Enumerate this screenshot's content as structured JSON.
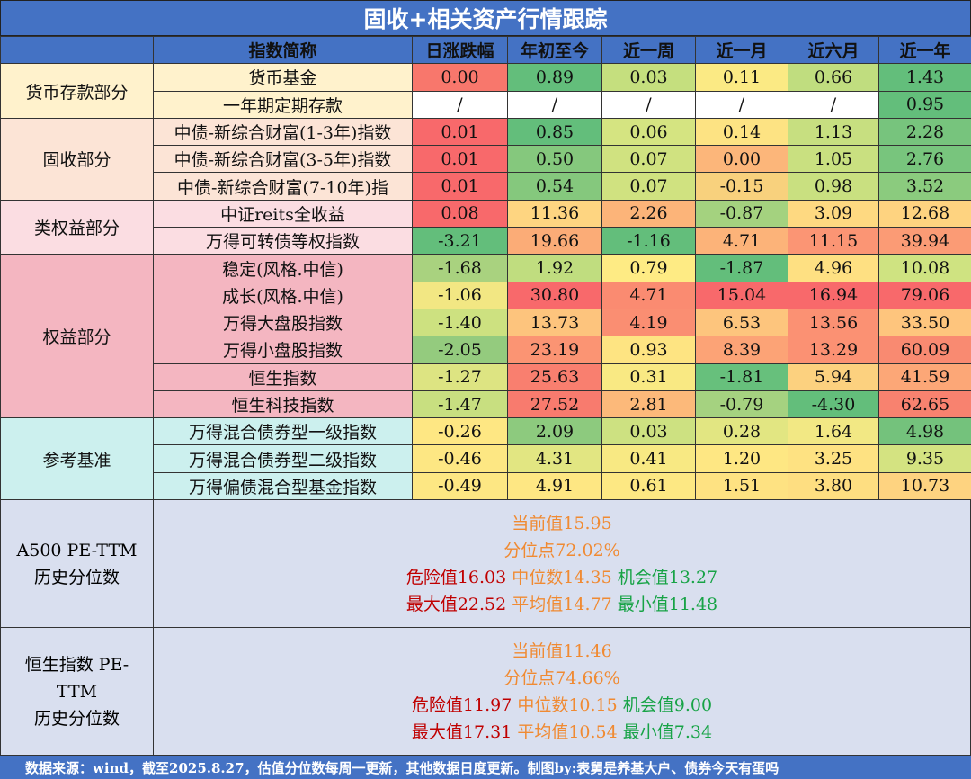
{
  "title": "固收+相关资产行情跟踪",
  "headers": [
    "指数简称",
    "日涨跌幅",
    "年初至今",
    "近一周",
    "近一月",
    "近六月",
    "近一年"
  ],
  "groups": [
    {
      "name": "货币存款部分",
      "bg": "#fff2cc",
      "rows": [
        {
          "name": "货币基金",
          "values": [
            "0.00",
            "0.89",
            "0.03",
            "0.11",
            "0.66",
            "1.43"
          ],
          "colors": [
            "#f8776c",
            "#63be7b",
            "#c5df7e",
            "#fbea84",
            "#c0dd7f",
            "#63be7b"
          ]
        },
        {
          "name": "一年期定期存款",
          "values": [
            "/",
            "/",
            "/",
            "/",
            "/",
            "0.95"
          ],
          "colors": [
            "#ffffff",
            "#ffffff",
            "#ffffff",
            "#ffffff",
            "#ffffff",
            "#63be7b"
          ]
        }
      ]
    },
    {
      "name": "固收部分",
      "bg": "#fce4d6",
      "rows": [
        {
          "name": "中债-新综合财富(1-3年)指数",
          "values": [
            "0.01",
            "0.85",
            "0.06",
            "0.14",
            "1.13",
            "2.28"
          ],
          "colors": [
            "#f8696b",
            "#63be7b",
            "#d5e481",
            "#fde383",
            "#c7df80",
            "#77c47d"
          ]
        },
        {
          "name": "中债-新综合财富(3-5年)指数",
          "values": [
            "0.01",
            "0.50",
            "0.07",
            "0.00",
            "1.05",
            "2.76"
          ],
          "colors": [
            "#f8696b",
            "#85c87d",
            "#d0e280",
            "#fcb67a",
            "#c9e080",
            "#78c57d"
          ]
        },
        {
          "name": "中债-新综合财富(7-10年)指",
          "values": [
            "0.01",
            "0.54",
            "0.07",
            "-0.15",
            "0.98",
            "3.52"
          ],
          "colors": [
            "#f8696b",
            "#85c87d",
            "#d0e280",
            "#f8d17d",
            "#c9e080",
            "#8bcb7e"
          ]
        }
      ]
    },
    {
      "name": "类权益部分",
      "bg": "#fbdde2",
      "rows": [
        {
          "name": "中证reits全收益",
          "values": [
            "0.08",
            "11.36",
            "2.26",
            "-0.87",
            "3.09",
            "12.68"
          ],
          "colors": [
            "#f8696b",
            "#fed581",
            "#fcb479",
            "#a4d27f",
            "#fed981",
            "#fed380"
          ]
        },
        {
          "name": "万得可转债等权指数",
          "values": [
            "-3.21",
            "19.66",
            "-1.16",
            "4.71",
            "11.15",
            "39.94"
          ],
          "colors": [
            "#63be7b",
            "#fbac77",
            "#63be7b",
            "#fcb379",
            "#fb9574",
            "#fb9b75"
          ]
        }
      ]
    },
    {
      "name": "权益部分",
      "bg": "#f4b6c1",
      "rows": [
        {
          "name": "稳定(风格.中信)",
          "values": [
            "-1.68",
            "1.92",
            "0.79",
            "-1.87",
            "4.96",
            "10.08"
          ],
          "colors": [
            "#a9d27f",
            "#c0dd7f",
            "#feeb84",
            "#63be7b",
            "#fee082",
            "#cfe381"
          ]
        },
        {
          "name": "成长(风格.中信)",
          "values": [
            "-1.06",
            "30.80",
            "4.71",
            "15.04",
            "16.94",
            "79.06"
          ],
          "colors": [
            "#f2e783",
            "#f8696b",
            "#fa8b71",
            "#f8696b",
            "#f8696b",
            "#f8696b"
          ]
        },
        {
          "name": "万得大盘股指数",
          "values": [
            "-1.40",
            "13.73",
            "4.19",
            "6.53",
            "13.56",
            "33.50"
          ],
          "colors": [
            "#cde180",
            "#fdc47d",
            "#fa8e72",
            "#fdc57d",
            "#fb9173",
            "#fec57d"
          ]
        },
        {
          "name": "万得小盘股指数",
          "values": [
            "-2.05",
            "23.19",
            "0.93",
            "8.39",
            "13.29",
            "60.09"
          ],
          "colors": [
            "#94cb7e",
            "#fb9473",
            "#fee482",
            "#fca376",
            "#fb9173",
            "#f98a71"
          ]
        },
        {
          "name": "恒生指数",
          "values": [
            "-1.27",
            "25.63",
            "0.31",
            "-1.81",
            "5.94",
            "41.59"
          ],
          "colors": [
            "#dde482",
            "#f97f6f",
            "#f9e983",
            "#67c07c",
            "#fcd17f",
            "#fca777"
          ]
        },
        {
          "name": "恒生科技指数",
          "values": [
            "-1.47",
            "27.52",
            "2.81",
            "-0.79",
            "-4.30",
            "62.65"
          ],
          "colors": [
            "#c8df80",
            "#f87b6e",
            "#fcb97a",
            "#a5d280",
            "#63be7b",
            "#f8826f"
          ]
        }
      ]
    },
    {
      "name": "参考基准",
      "bg": "#ccf0ee",
      "rows": [
        {
          "name": "万得混合债券型一级指数",
          "values": [
            "-0.26",
            "2.09",
            "0.03",
            "0.28",
            "1.64",
            "4.98"
          ],
          "colors": [
            "#fee783",
            "#8dca7e",
            "#cde181",
            "#e2e682",
            "#f2e884",
            "#74c27c"
          ]
        },
        {
          "name": "万得混合债券型二级指数",
          "values": [
            "-0.46",
            "4.31",
            "0.41",
            "1.20",
            "3.25",
            "9.35"
          ],
          "colors": [
            "#fde783",
            "#e2e682",
            "#f8e983",
            "#fee783",
            "#fee282",
            "#d4e381"
          ]
        },
        {
          "name": "万得偏债混合型基金指数",
          "values": [
            "-0.49",
            "4.91",
            "0.61",
            "1.51",
            "3.80",
            "10.73"
          ],
          "colors": [
            "#fde783",
            "#fee783",
            "#fde883",
            "#fee282",
            "#fede81",
            "#fed380"
          ]
        }
      ]
    }
  ],
  "pe_blocks": [
    {
      "label_lines": [
        "A500 PE-TTM",
        "历史分位数"
      ],
      "current": "当前值15.95",
      "percentile": "分位点72.02%",
      "danger": "危险值16.03",
      "median": "中位数14.35",
      "opportunity": "机会值13.27",
      "max": "最大值22.52",
      "mean": "平均值14.77",
      "min": "最小值11.48"
    },
    {
      "label_lines": [
        "恒生指数 PE-",
        "TTM",
        "历史分位数"
      ],
      "current": "当前值11.46",
      "percentile": "分位点74.66%",
      "danger": "危险值11.97",
      "median": "中位数10.15",
      "opportunity": "机会值9.00",
      "max": "最大值17.31",
      "mean": "平均值10.54",
      "min": "最小值7.34"
    }
  ],
  "footer": "数据来源：wind，截至2025.8.27，估值分位数每周一更新，其他数据日度更新。制图by:表舅是养基大户、债券今天有蛋吗",
  "colors": {
    "header_blue": "#4472c4",
    "pe_bg": "#d9dfef",
    "orange_text": "#f08a32",
    "red_text": "#c00000",
    "green_text": "#17a346"
  }
}
